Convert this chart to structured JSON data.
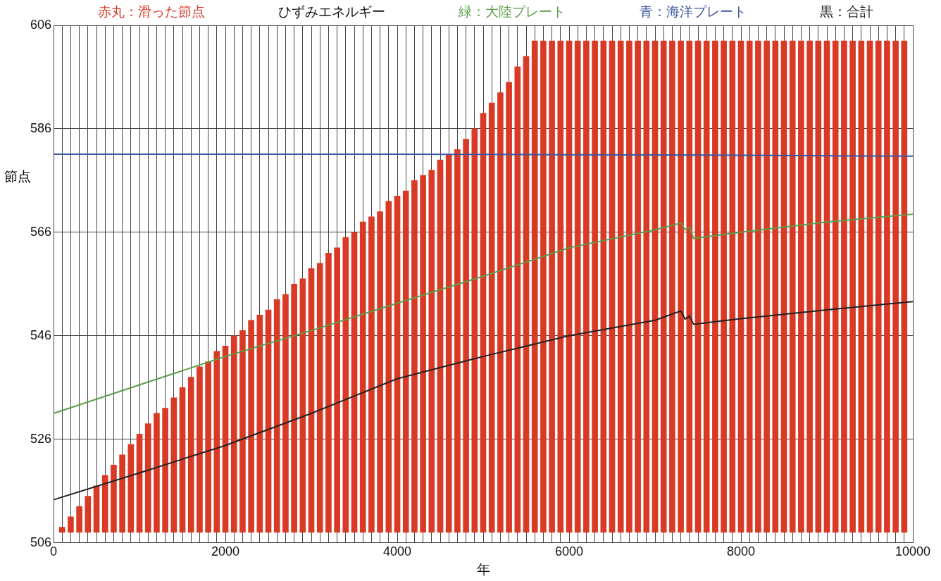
{
  "chart_data": {
    "type": "line",
    "title": "ひずみエネルギー",
    "xlabel": "年",
    "ylabel": "節点",
    "legend": "top",
    "grid": true,
    "marker": "none",
    "line_style": "solid",
    "xlim": [
      0,
      10000
    ],
    "ylim": [
      506,
      606
    ],
    "yticks": [
      506,
      526,
      546,
      566,
      586,
      606
    ],
    "xticks": [
      0,
      {
        "value": 100,
        "label": null
      },
      {
        "value": 200,
        "label": null
      },
      {
        "value": 300,
        "label": null
      },
      {
        "value": 400,
        "label": null
      },
      {
        "value": 500,
        "label": null
      },
      {
        "value": 600,
        "label": null
      },
      {
        "value": 700,
        "label": null
      },
      {
        "value": 800,
        "label": null
      },
      {
        "value": 900,
        "label": null
      },
      {
        "value": 1000,
        "label": null
      },
      {
        "value": 1100,
        "label": null
      },
      {
        "value": 1200,
        "label": null
      },
      {
        "value": 1300,
        "label": null
      },
      {
        "value": 1400,
        "label": null
      },
      {
        "value": 1500,
        "label": null
      },
      {
        "value": 1600,
        "label": null
      },
      {
        "value": 1700,
        "label": null
      },
      {
        "value": 1800,
        "label": null
      },
      {
        "value": 1900,
        "label": null
      },
      2000,
      {
        "value": 2100,
        "label": null
      },
      {
        "value": 2200,
        "label": null
      },
      {
        "value": 2300,
        "label": null
      },
      {
        "value": 2400,
        "label": null
      },
      {
        "value": 2500,
        "label": null
      },
      {
        "value": 2600,
        "label": null
      },
      {
        "value": 2700,
        "label": null
      },
      {
        "value": 2800,
        "label": null
      },
      {
        "value": 2900,
        "label": null
      },
      {
        "value": 3000,
        "label": null
      },
      {
        "value": 3100,
        "label": null
      },
      {
        "value": 3200,
        "label": null
      },
      {
        "value": 3300,
        "label": null
      },
      {
        "value": 3400,
        "label": null
      },
      {
        "value": 3500,
        "label": null
      },
      {
        "value": 3600,
        "label": null
      },
      {
        "value": 3700,
        "label": null
      },
      {
        "value": 3800,
        "label": null
      },
      {
        "value": 3900,
        "label": null
      },
      4000,
      {
        "value": 4100,
        "label": null
      },
      {
        "value": 4200,
        "label": null
      },
      {
        "value": 4300,
        "label": null
      },
      {
        "value": 4400,
        "label": null
      },
      {
        "value": 4500,
        "label": null
      },
      {
        "value": 4600,
        "label": null
      },
      {
        "value": 4700,
        "label": null
      },
      {
        "value": 4800,
        "label": null
      },
      {
        "value": 4900,
        "label": null
      },
      {
        "value": 5000,
        "label": null
      },
      {
        "value": 5100,
        "label": null
      },
      {
        "value": 5200,
        "label": null
      },
      {
        "value": 5300,
        "label": null
      },
      {
        "value": 5400,
        "label": null
      },
      {
        "value": 5500,
        "label": null
      },
      {
        "value": 5600,
        "label": null
      },
      {
        "value": 5700,
        "label": null
      },
      {
        "value": 5800,
        "label": null
      },
      {
        "value": 5900,
        "label": null
      },
      6000,
      {
        "value": 6100,
        "label": null
      },
      {
        "value": 6200,
        "label": null
      },
      {
        "value": 6300,
        "label": null
      },
      {
        "value": 6400,
        "label": null
      },
      {
        "value": 6500,
        "label": null
      },
      {
        "value": 6600,
        "label": null
      },
      {
        "value": 6700,
        "label": null
      },
      {
        "value": 6800,
        "label": null
      },
      {
        "value": 6900,
        "label": null
      },
      {
        "value": 7000,
        "label": null
      },
      {
        "value": 7100,
        "label": null
      },
      {
        "value": 7200,
        "label": null
      },
      {
        "value": 7300,
        "label": null
      },
      {
        "value": 7400,
        "label": null
      },
      {
        "value": 7500,
        "label": null
      },
      {
        "value": 7600,
        "label": null
      },
      {
        "value": 7700,
        "label": null
      },
      {
        "value": 7800,
        "label": null
      },
      {
        "value": 7900,
        "label": null
      },
      8000,
      {
        "value": 8100,
        "label": null
      },
      {
        "value": 8200,
        "label": null
      },
      {
        "value": 8300,
        "label": null
      },
      {
        "value": 8400,
        "label": null
      },
      {
        "value": 8500,
        "label": null
      },
      {
        "value": 8600,
        "label": null
      },
      {
        "value": 8700,
        "label": null
      },
      {
        "value": 8800,
        "label": null
      },
      {
        "value": 8900,
        "label": null
      },
      {
        "value": 9000,
        "label": null
      },
      {
        "value": 9100,
        "label": null
      },
      {
        "value": 9200,
        "label": null
      },
      {
        "value": 9300,
        "label": null
      },
      {
        "value": 9400,
        "label": null
      },
      {
        "value": 9500,
        "label": null
      },
      {
        "value": 9600,
        "label": null
      },
      {
        "value": 9700,
        "label": null
      },
      {
        "value": 9800,
        "label": null
      },
      {
        "value": 9900,
        "label": null
      },
      10000
    ],
    "series": [
      {
        "name": "赤丸：滑った節点",
        "type": "bar",
        "color": "#d93a26",
        "x": [
          100,
          200,
          300,
          400,
          500,
          600,
          700,
          800,
          900,
          1000,
          1100,
          1200,
          1300,
          1400,
          1500,
          1600,
          1700,
          1800,
          1900,
          2000,
          2100,
          2200,
          2300,
          2400,
          2500,
          2600,
          2700,
          2800,
          2900,
          3000,
          3100,
          3200,
          3300,
          3400,
          3500,
          3600,
          3700,
          3800,
          3900,
          4000,
          4100,
          4200,
          4300,
          4400,
          4500,
          4600,
          4700,
          4800,
          4900,
          5000,
          5100,
          5200,
          5300,
          5400,
          5500,
          5600,
          5700,
          5800,
          5900,
          6000,
          6100,
          6200,
          6300,
          6400,
          6500,
          6600,
          6700,
          6800,
          6900,
          7000,
          7100,
          7200,
          7300,
          7400,
          7500,
          7600,
          7700,
          7800,
          7900,
          8000,
          8100,
          8200,
          8300,
          8400,
          8500,
          8600,
          8700,
          8800,
          8900,
          9000,
          9100,
          9200,
          9300,
          9400,
          9500,
          9600,
          9700,
          9800,
          9900
        ],
        "base": [
          508,
          508,
          508,
          508,
          508,
          508,
          508,
          508,
          508,
          508,
          508,
          508,
          508,
          508,
          508,
          508,
          508,
          508,
          508,
          508,
          508,
          508,
          508,
          508,
          508,
          508,
          508,
          508,
          508,
          508,
          508,
          508,
          508,
          508,
          508,
          508,
          508,
          508,
          508,
          508,
          508,
          508,
          508,
          508,
          508,
          508,
          508,
          508,
          508,
          508,
          508,
          508,
          508,
          508,
          508,
          508,
          508,
          508,
          508,
          508,
          508,
          508,
          508,
          508,
          508,
          508,
          508,
          508,
          508,
          508,
          508,
          508,
          508,
          508,
          508,
          508,
          508,
          508,
          508,
          508,
          508,
          508,
          508,
          508,
          508,
          508,
          508,
          508,
          508,
          508,
          508,
          508,
          508,
          508,
          508,
          508,
          508,
          508,
          508
        ],
        "values": [
          1,
          3,
          5,
          7,
          9,
          11,
          13,
          15,
          17,
          19,
          21,
          23,
          24,
          26,
          28,
          30,
          32,
          33,
          35,
          36,
          38,
          39,
          41,
          42,
          43,
          45,
          46,
          48,
          49,
          51,
          52,
          54,
          55,
          57,
          58,
          60,
          61,
          62,
          64,
          65,
          66,
          68,
          69,
          70,
          72,
          73,
          74,
          76,
          78,
          81,
          83,
          85,
          87,
          90,
          92,
          95,
          95,
          95,
          95,
          95,
          95,
          95,
          95,
          95,
          95,
          95,
          95,
          95,
          95,
          95,
          95,
          95,
          95,
          95,
          95,
          95,
          95,
          95,
          95,
          95,
          95,
          95,
          95,
          95,
          95,
          95,
          95,
          95,
          95,
          95,
          95,
          95,
          95,
          95,
          95,
          95,
          95,
          95,
          95
        ]
      },
      {
        "name": "緑：大陸プレート",
        "color": "#5a9e48",
        "x": [
          0,
          1000,
          2000,
          3000,
          4000,
          5000,
          6000,
          7000,
          7300,
          7350,
          7400,
          7450,
          8000,
          9000,
          10000
        ],
        "values": [
          531,
          536.5,
          542,
          547,
          552.3,
          557.5,
          563,
          566.5,
          567.8,
          566.5,
          567,
          564.8,
          566,
          568,
          569.5
        ]
      },
      {
        "name": "青：海洋プレート",
        "color": "#3b55a0",
        "x": [
          0,
          2000,
          4000,
          6000,
          8000,
          10000
        ],
        "values": [
          581.1,
          581.1,
          581.1,
          581,
          580.9,
          580.7
        ]
      },
      {
        "name": "黒：合計",
        "color": "#222222",
        "x": [
          0,
          1000,
          2000,
          3000,
          4000,
          5000,
          6000,
          7000,
          7300,
          7350,
          7400,
          7450,
          8000,
          9000,
          10000
        ],
        "values": [
          514.3,
          519.5,
          524.8,
          531,
          537.7,
          542,
          546,
          549,
          550.8,
          549.2,
          549.8,
          548.2,
          549.3,
          551,
          552.6
        ]
      }
    ]
  }
}
